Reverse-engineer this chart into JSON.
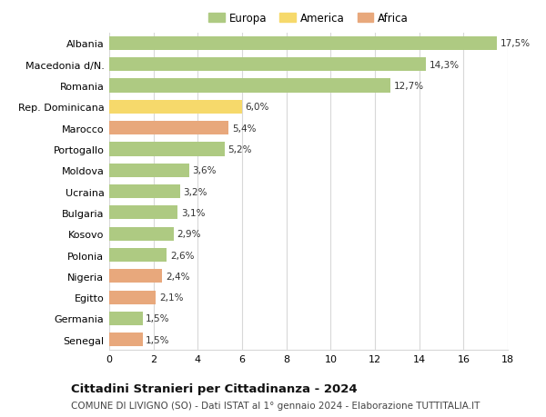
{
  "categories": [
    "Albania",
    "Macedonia d/N.",
    "Romania",
    "Rep. Dominicana",
    "Marocco",
    "Portogallo",
    "Moldova",
    "Ucraina",
    "Bulgaria",
    "Kosovo",
    "Polonia",
    "Nigeria",
    "Egitto",
    "Germania",
    "Senegal"
  ],
  "values": [
    17.5,
    14.3,
    12.7,
    6.0,
    5.4,
    5.2,
    3.6,
    3.2,
    3.1,
    2.9,
    2.6,
    2.4,
    2.1,
    1.5,
    1.5
  ],
  "labels": [
    "17,5%",
    "14,3%",
    "12,7%",
    "6,0%",
    "5,4%",
    "5,2%",
    "3,6%",
    "3,2%",
    "3,1%",
    "2,9%",
    "2,6%",
    "2,4%",
    "2,1%",
    "1,5%",
    "1,5%"
  ],
  "continents": [
    "Europa",
    "Europa",
    "Europa",
    "America",
    "Africa",
    "Europa",
    "Europa",
    "Europa",
    "Europa",
    "Europa",
    "Europa",
    "Africa",
    "Africa",
    "Europa",
    "Africa"
  ],
  "colors": {
    "Europa": "#aeca82",
    "America": "#f6d96b",
    "Africa": "#e8a87c"
  },
  "xlim": [
    0,
    18
  ],
  "xticks": [
    0,
    2,
    4,
    6,
    8,
    10,
    12,
    14,
    16,
    18
  ],
  "title": "Cittadini Stranieri per Cittadinanza - 2024",
  "subtitle": "COMUNE DI LIVIGNO (SO) - Dati ISTAT al 1° gennaio 2024 - Elaborazione TUTTITALIA.IT",
  "background_color": "#ffffff",
  "grid_color": "#d8d8d8",
  "bar_height": 0.65,
  "label_fontsize": 7.5,
  "ytick_fontsize": 8.0,
  "xtick_fontsize": 8.0,
  "legend_fontsize": 8.5,
  "title_fontsize": 9.5,
  "subtitle_fontsize": 7.5
}
